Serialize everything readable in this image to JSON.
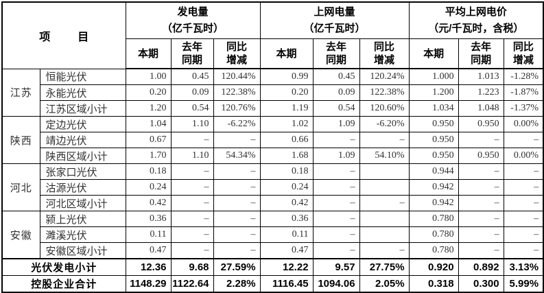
{
  "table": {
    "corner_label": "项         目",
    "groups": [
      {
        "title": "发电量\n（亿千瓦时）"
      },
      {
        "title": "上网电量\n（亿千瓦时）"
      },
      {
        "title": "平均上网电价\n（元/千瓦时，含税）"
      }
    ],
    "subheaders": [
      "本期",
      "去年\n同期",
      "同比\n增减",
      "本期",
      "去年\n同期",
      "同比\n增减",
      "本期",
      "去年\n同期",
      "同比\n增减"
    ],
    "rows": [
      {
        "region": "江苏",
        "region_span": 3,
        "name": "恒能光伏",
        "values": [
          "1.00",
          "0.45",
          "120.44%",
          "0.99",
          "0.45",
          "120.24%",
          "1.000",
          "1.013",
          "-1.28%"
        ]
      },
      {
        "name": "永能光伏",
        "values": [
          "0.20",
          "0.09",
          "122.38%",
          "0.20",
          "0.09",
          "122.38%",
          "1.200",
          "1.223",
          "-1.87%"
        ]
      },
      {
        "name": "江苏区域小计",
        "values": [
          "1.20",
          "0.54",
          "120.76%",
          "1.19",
          "0.54",
          "120.60%",
          "1.034",
          "1.048",
          "-1.37%"
        ]
      },
      {
        "region": "陕西",
        "region_span": 3,
        "name": "定边光伏",
        "values": [
          "1.04",
          "1.10",
          "-6.22%",
          "1.02",
          "1.09",
          "-6.20%",
          "0.950",
          "0.950",
          "0.00%"
        ]
      },
      {
        "name": "靖边光伏",
        "values": [
          "0.67",
          "–",
          "–",
          "0.66",
          "–",
          "–",
          "0.950",
          "–",
          "–"
        ]
      },
      {
        "name": "陕西区域小计",
        "values": [
          "1.70",
          "1.10",
          "54.34%",
          "1.68",
          "1.09",
          "54.10%",
          "0.950",
          "0.950",
          "0.00%"
        ]
      },
      {
        "region": "河北",
        "region_span": 3,
        "name": "张家口光伏",
        "values": [
          "0.18",
          "–",
          "–",
          "0.18",
          "–",
          "",
          "0.944",
          "–",
          "–"
        ]
      },
      {
        "name": "沽源光伏",
        "values": [
          "0.24",
          "–",
          "–",
          "0.24",
          "–",
          "",
          "0.942",
          "–",
          "–"
        ]
      },
      {
        "name": "河北区域小计",
        "values": [
          "0.42",
          "–",
          "–",
          "0.42",
          "–",
          "–",
          "0.942",
          "–",
          "–"
        ]
      },
      {
        "region": "安徽",
        "region_span": 3,
        "name": "颍上光伏",
        "values": [
          "0.36",
          "–",
          "–",
          "0.36",
          "–",
          "",
          "0.780",
          "–",
          "–"
        ]
      },
      {
        "name": "濉溪光伏",
        "values": [
          "0.11",
          "–",
          "–",
          "0.11",
          "–",
          "",
          "0.780",
          "–",
          "–"
        ]
      },
      {
        "name": "安徽区域小计",
        "values": [
          "0.47",
          "–",
          "–",
          "0.47",
          "–",
          "–",
          "0.780",
          "–",
          "–"
        ]
      }
    ],
    "summary_rows": [
      {
        "name": "光伏发电小计",
        "values": [
          "12.36",
          "9.68",
          "27.59%",
          "12.22",
          "9.57",
          "27.75%",
          "0.920",
          "0.892",
          "3.13%"
        ]
      },
      {
        "name": "控股企业合计",
        "values": [
          "1148.29",
          "1122.64",
          "2.28%",
          "1116.45",
          "1094.06",
          "2.05%",
          "0.318",
          "0.300",
          "5.99%"
        ]
      }
    ],
    "colors": {
      "border": "#000000",
      "data_text": "#303030",
      "header_text": "#000000",
      "background": "#ffffff"
    }
  }
}
